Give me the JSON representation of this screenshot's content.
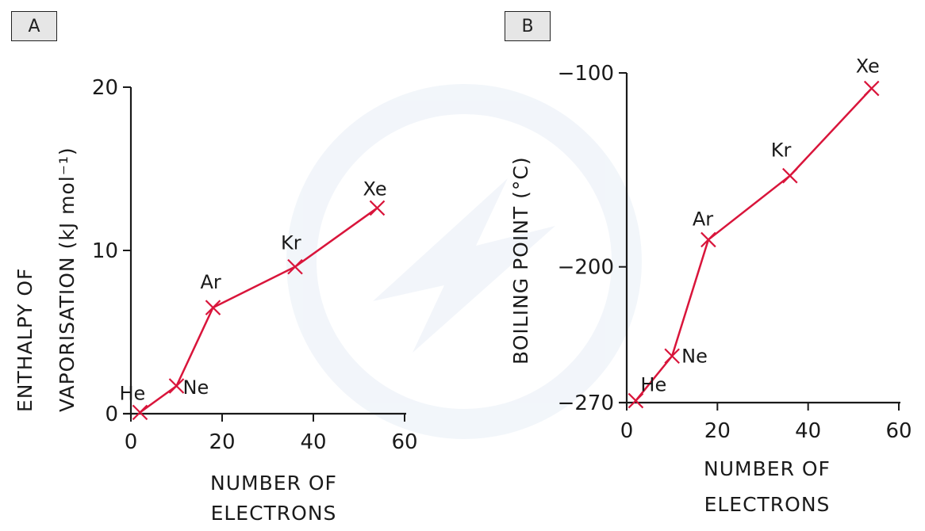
{
  "panels": {
    "a_label": "A",
    "b_label": "B"
  },
  "colors": {
    "series": "#d9153b",
    "axis": "#1a1a1a",
    "watermark": "#e8eef6"
  },
  "chart_data": [
    {
      "type": "line",
      "panel": "A",
      "xlabel_lines": [
        "NUMBER OF",
        "ELECTRONS"
      ],
      "ylabel_lines": [
        "ENTHALPY OF",
        "VAPORISATION (kJ mol⁻¹)"
      ],
      "xlim": [
        0,
        60
      ],
      "ylim": [
        0,
        20
      ],
      "x_ticks": [
        0,
        20,
        40,
        60
      ],
      "y_ticks": [
        0,
        10,
        20
      ],
      "grid": false,
      "points": [
        {
          "label": "He",
          "x": 2,
          "y": 0.08
        },
        {
          "label": "Ne",
          "x": 10,
          "y": 1.7
        },
        {
          "label": "Ar",
          "x": 18,
          "y": 6.5
        },
        {
          "label": "Kr",
          "x": 36,
          "y": 9.0
        },
        {
          "label": "Xe",
          "x": 54,
          "y": 12.6
        }
      ]
    },
    {
      "type": "line",
      "panel": "B",
      "xlabel_lines": [
        "NUMBER OF",
        "ELECTRONS"
      ],
      "ylabel_lines": [
        "BOILING POINT (°C)"
      ],
      "xlim": [
        0,
        60
      ],
      "ylim": [
        -270,
        -100
      ],
      "x_ticks": [
        0,
        20,
        40,
        60
      ],
      "y_ticks": [
        -270,
        -200,
        -100
      ],
      "grid": false,
      "points": [
        {
          "label": "He",
          "x": 2,
          "y": -269
        },
        {
          "label": "Ne",
          "x": 10,
          "y": -246
        },
        {
          "label": "Ar",
          "x": 18,
          "y": -186
        },
        {
          "label": "Kr",
          "x": 36,
          "y": -153
        },
        {
          "label": "Xe",
          "x": 54,
          "y": -108
        }
      ]
    }
  ]
}
